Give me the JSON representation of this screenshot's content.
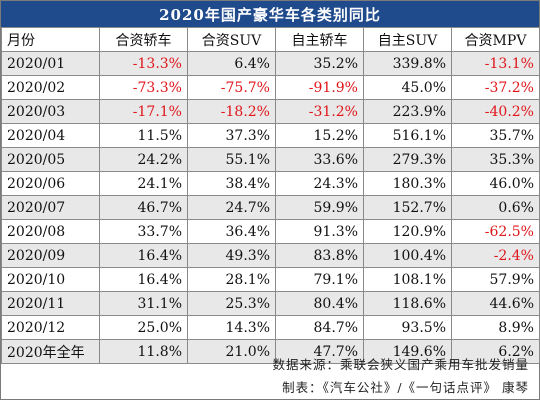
{
  "title": "2020年国产豪华车各类别同比",
  "headers": [
    "月份",
    "合资轿车",
    "合资SUV",
    "自主轿车",
    "自主SUV",
    "合资MPV"
  ],
  "rows": [
    [
      "2020/01",
      "-13.3%",
      "6.4%",
      "35.2%",
      "339.8%",
      "-13.1%"
    ],
    [
      "2020/02",
      "-73.3%",
      "-75.7%",
      "-91.9%",
      "45.0%",
      "-37.2%"
    ],
    [
      "2020/03",
      "-17.1%",
      "-18.2%",
      "-31.2%",
      "223.9%",
      "-40.2%"
    ],
    [
      "2020/04",
      "11.5%",
      "37.3%",
      "15.2%",
      "516.1%",
      "35.7%"
    ],
    [
      "2020/05",
      "24.2%",
      "55.1%",
      "33.6%",
      "279.3%",
      "35.3%"
    ],
    [
      "2020/06",
      "24.1%",
      "38.4%",
      "24.3%",
      "180.3%",
      "46.0%"
    ],
    [
      "2020/07",
      "46.7%",
      "24.7%",
      "59.9%",
      "152.7%",
      "0.6%"
    ],
    [
      "2020/08",
      "33.7%",
      "36.4%",
      "91.3%",
      "120.9%",
      "-62.5%"
    ],
    [
      "2020/09",
      "16.4%",
      "49.3%",
      "83.8%",
      "100.4%",
      "-2.4%"
    ],
    [
      "2020/10",
      "16.4%",
      "28.1%",
      "79.1%",
      "108.1%",
      "57.9%"
    ],
    [
      "2020/11",
      "31.1%",
      "25.3%",
      "80.4%",
      "118.6%",
      "44.6%"
    ],
    [
      "2020/12",
      "25.0%",
      "14.3%",
      "84.7%",
      "93.5%",
      "8.9%"
    ],
    [
      "2020年全年",
      "11.8%",
      "21.0%",
      "47.7%",
      "149.6%",
      "6.2%"
    ]
  ],
  "footer": {
    "source": "数据来源：乘联会狭义国产乘用车批发销量",
    "credit": "制表：《汽车公社》/《一句话点评》 康琴"
  },
  "colors": {
    "title_bg": "#1f4a8c",
    "negative": "#e0161b",
    "stripe": "#e8e8e8"
  }
}
